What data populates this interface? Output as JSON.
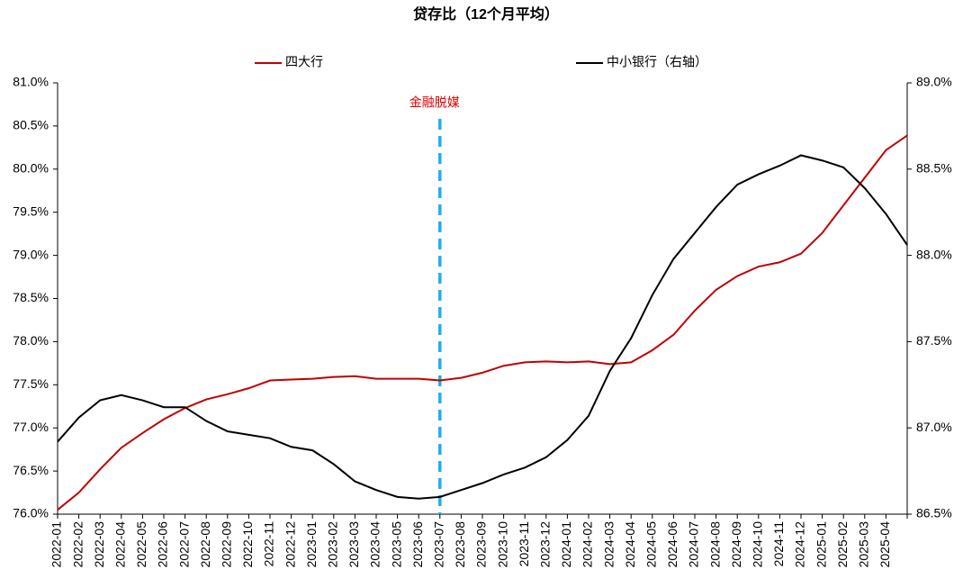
{
  "chart_data": {
    "type": "line",
    "title": "贷存比（12个月平均）",
    "categories": [
      "2022-01",
      "2022-02",
      "2022-03",
      "2022-04",
      "2022-05",
      "2022-06",
      "2022-07",
      "2022-08",
      "2022-09",
      "2022-10",
      "2022-11",
      "2022-12",
      "2023-01",
      "2023-02",
      "2023-03",
      "2023-04",
      "2023-05",
      "2023-06",
      "2023-07",
      "2023-08",
      "2023-09",
      "2023-10",
      "2023-11",
      "2023-12",
      "2024-01",
      "2024-02",
      "2024-03",
      "2024-04",
      "2024-05",
      "2024-06",
      "2024-07",
      "2024-08",
      "2024-09",
      "2024-10",
      "2024-11",
      "2024-12",
      "2025-01",
      "2025-02",
      "2025-03",
      "2025-04",
      null
    ],
    "series": [
      {
        "name": "四大行",
        "color": "#c00000",
        "axis": "y",
        "values": [
          76.05,
          76.25,
          76.52,
          76.77,
          76.94,
          77.1,
          77.23,
          77.33,
          77.39,
          77.46,
          77.55,
          77.56,
          77.57,
          77.59,
          77.6,
          77.57,
          77.57,
          77.57,
          77.55,
          77.58,
          77.64,
          77.72,
          77.76,
          77.77,
          77.76,
          77.77,
          77.74,
          77.76,
          77.9,
          78.08,
          78.36,
          78.6,
          78.76,
          78.87,
          78.92,
          79.02,
          79.26,
          79.58,
          79.9,
          80.22,
          80.39
        ]
      },
      {
        "name": "中小银行（右轴）",
        "color": "#000000",
        "axis": "y2",
        "values": [
          86.92,
          87.06,
          87.16,
          87.19,
          87.16,
          87.12,
          87.12,
          87.04,
          86.98,
          86.96,
          86.94,
          86.89,
          86.87,
          86.79,
          86.69,
          86.64,
          86.6,
          86.59,
          86.6,
          86.64,
          86.68,
          86.73,
          86.77,
          86.83,
          86.93,
          87.07,
          87.33,
          87.52,
          87.77,
          87.98,
          88.13,
          88.28,
          88.41,
          88.47,
          88.52,
          88.58,
          88.55,
          88.51,
          88.39,
          88.24,
          88.06
        ]
      }
    ],
    "ylim": [
      76.0,
      81.0
    ],
    "yticks": [
      {
        "value": 76.0,
        "label": "76.0%"
      },
      {
        "value": 76.5,
        "label": "76.5%"
      },
      {
        "value": 77.0,
        "label": "77.0%"
      },
      {
        "value": 77.5,
        "label": "77.5%"
      },
      {
        "value": 78.0,
        "label": "78.0%"
      },
      {
        "value": 78.5,
        "label": "78.5%"
      },
      {
        "value": 79.0,
        "label": "79.0%"
      },
      {
        "value": 79.5,
        "label": "79.5%"
      },
      {
        "value": 80.0,
        "label": "80.0%"
      },
      {
        "value": 80.5,
        "label": "80.5%"
      },
      {
        "value": 81.0,
        "label": "81.0%"
      }
    ],
    "y2lim": [
      86.5,
      89.0
    ],
    "y2ticks": [
      {
        "value": 86.5,
        "label": "86.5%"
      },
      {
        "value": 87.0,
        "label": "87.0%"
      },
      {
        "value": 87.5,
        "label": "87.5%"
      },
      {
        "value": 88.0,
        "label": "88.0%"
      },
      {
        "value": 88.5,
        "label": "88.5%"
      },
      {
        "value": 89.0,
        "label": "89.0%"
      }
    ],
    "annotations": [
      {
        "text": "金融脱媒",
        "x": "2023-07",
        "color": "#e00000",
        "line_color": "#1fb0e6"
      }
    ],
    "legend": "top",
    "grid": false
  }
}
